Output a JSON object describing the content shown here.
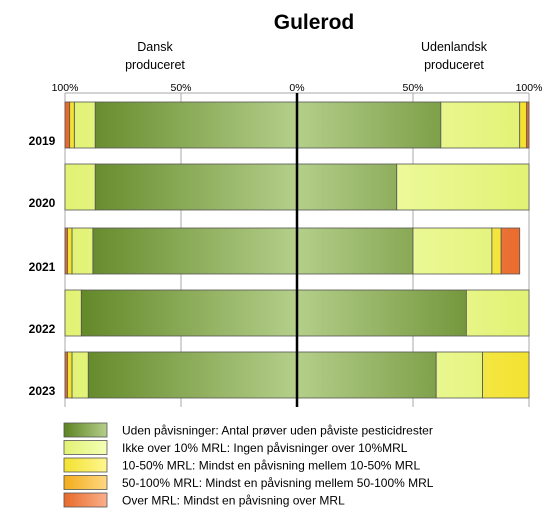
{
  "chart_data": {
    "type": "bar",
    "subtype": "diverging-stacked-horizontal",
    "title": "Gulerod",
    "side_labels": {
      "left": [
        "Dansk",
        "produceret"
      ],
      "right": [
        "Udenlandsk",
        "produceret"
      ]
    },
    "x_ticks": [
      "100%",
      "50%",
      "0%",
      "50%",
      "100%"
    ],
    "xlim": [
      -100,
      100
    ],
    "grid": true,
    "legend_position": "bottom",
    "categories": [
      "2019",
      "2020",
      "2021",
      "2022",
      "2023"
    ],
    "series": [
      {
        "name": "Uden påvisninger: Antal prøver uden påviste pesticidrester",
        "color": "#77A82A",
        "dansk": [
          87,
          87,
          88,
          93,
          90
        ],
        "udenlandsk": [
          62,
          43,
          50,
          73,
          60
        ]
      },
      {
        "name": "Ikke over 10% MRL: Ingen påvisninger over 10%MRL",
        "color": "#EDFF7A",
        "dansk": [
          9,
          13,
          9,
          7,
          7
        ],
        "udenlandsk": [
          34,
          57,
          34,
          27,
          20
        ]
      },
      {
        "name": "10-50% MRL: Mindst en påvisning mellem 10-50% MRL",
        "color": "#FFEE33",
        "dansk": [
          2,
          0,
          2,
          0,
          2
        ],
        "udenlandsk": [
          3,
          0,
          4,
          0,
          20
        ]
      },
      {
        "name": "50-100% MRL: Mindst en påvisning mellem 50-100% MRL",
        "color": "#FFB61C",
        "dansk": [
          0,
          0,
          0,
          0,
          0
        ],
        "udenlandsk": [
          0,
          0,
          0,
          0,
          0
        ]
      },
      {
        "name": "Over MRL:  Mindst en påvisning over MRL",
        "color": "#F56F2C",
        "dansk": [
          2,
          0,
          1,
          0,
          1
        ],
        "udenlandsk": [
          1,
          0,
          8,
          0,
          0
        ]
      }
    ]
  }
}
